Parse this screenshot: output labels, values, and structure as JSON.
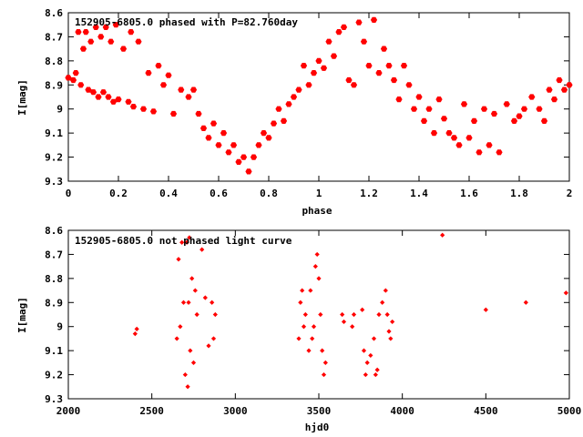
{
  "chart_data": [
    {
      "type": "scatter",
      "title": "152905-6805.0 phased with P=82.760day",
      "xlabel": "phase",
      "ylabel": "I[mag]",
      "xlim": [
        0,
        2
      ],
      "ylim": [
        9.3,
        8.6
      ],
      "y_inverted": true,
      "xticks": [
        0,
        0.2,
        0.4,
        0.6,
        0.8,
        1,
        1.2,
        1.4,
        1.6,
        1.8,
        2
      ],
      "xtick_labels": [
        "0",
        "0.2",
        "0.4",
        "0.6",
        "0.8",
        "1",
        "1.2",
        "1.4",
        "1.6",
        "1.8",
        "2"
      ],
      "yticks": [
        8.6,
        8.7,
        8.8,
        8.9,
        9,
        9.1,
        9.2,
        9.3
      ],
      "ytick_labels": [
        "8.6",
        "8.7",
        "8.8",
        "8.9",
        "9",
        "9.1",
        "9.2",
        "9.3"
      ],
      "marker": "filled-hexagon",
      "color": "#ff0000",
      "series": [
        {
          "x": [
            0.0,
            0.02,
            0.03,
            0.04,
            0.05,
            0.06,
            0.07,
            0.08,
            0.09,
            0.1,
            0.11,
            0.12,
            0.13,
            0.14,
            0.15,
            0.16,
            0.17,
            0.18,
            0.19,
            0.2,
            0.22,
            0.24,
            0.25,
            0.26,
            0.28,
            0.3,
            0.32,
            0.34,
            0.36,
            0.38,
            0.4,
            0.42,
            0.45,
            0.48,
            0.5,
            0.52,
            0.54,
            0.56,
            0.58,
            0.6,
            0.62,
            0.64,
            0.66,
            0.68,
            0.7,
            0.72,
            0.74,
            0.76,
            0.78,
            0.8,
            0.82,
            0.84,
            0.86,
            0.88,
            0.9,
            0.92,
            0.94,
            0.96,
            0.98,
            1.0,
            1.02,
            1.04,
            1.06,
            1.08,
            1.1,
            1.12,
            1.14,
            1.16,
            1.18,
            1.2,
            1.22,
            1.24,
            1.26,
            1.28,
            1.3,
            1.32,
            1.34,
            1.36,
            1.38,
            1.4,
            1.42,
            1.44,
            1.46,
            1.48,
            1.5,
            1.52,
            1.54,
            1.56,
            1.58,
            1.6,
            1.62,
            1.64,
            1.66,
            1.68,
            1.7,
            1.72,
            1.75,
            1.78,
            1.8,
            1.82,
            1.85,
            1.88,
            1.9,
            1.92,
            1.94,
            1.96,
            1.98,
            2.0
          ],
          "y": [
            8.87,
            8.88,
            8.85,
            8.68,
            8.9,
            8.75,
            8.68,
            8.92,
            8.72,
            8.93,
            8.66,
            8.95,
            8.7,
            8.93,
            8.66,
            8.95,
            8.72,
            8.97,
            8.65,
            8.96,
            8.75,
            8.97,
            8.68,
            8.99,
            8.72,
            9.0,
            8.85,
            9.01,
            8.82,
            8.9,
            8.86,
            9.02,
            8.92,
            8.95,
            8.92,
            9.02,
            9.08,
            9.12,
            9.06,
            9.15,
            9.1,
            9.18,
            9.15,
            9.22,
            9.2,
            9.26,
            9.2,
            9.15,
            9.1,
            9.12,
            9.06,
            9.0,
            9.05,
            8.98,
            8.95,
            8.92,
            8.82,
            8.9,
            8.85,
            8.8,
            8.83,
            8.72,
            8.78,
            8.68,
            8.66,
            8.88,
            8.9,
            8.64,
            8.72,
            8.82,
            8.63,
            8.85,
            8.75,
            8.82,
            8.88,
            8.96,
            8.82,
            8.9,
            9.0,
            8.95,
            9.05,
            9.0,
            9.1,
            8.96,
            9.04,
            9.1,
            9.12,
            9.15,
            8.98,
            9.12,
            9.05,
            9.18,
            9.0,
            9.15,
            9.02,
            9.18,
            8.98,
            9.05,
            9.03,
            9.0,
            8.95,
            9.0,
            9.05,
            8.92,
            8.96,
            8.88,
            8.92,
            8.9
          ]
        }
      ]
    },
    {
      "type": "scatter",
      "title": "152905-6805.0 not phased light curve",
      "xlabel": "hjd0",
      "ylabel": "I[mag]",
      "xlim": [
        2000,
        5000
      ],
      "ylim": [
        9.3,
        8.6
      ],
      "y_inverted": true,
      "xticks": [
        2000,
        2500,
        3000,
        3500,
        4000,
        4500,
        5000
      ],
      "xtick_labels": [
        "2000",
        "2500",
        "3000",
        "3500",
        "4000",
        "4500",
        "5000"
      ],
      "yticks": [
        8.6,
        8.7,
        8.8,
        8.9,
        9,
        9.1,
        9.2,
        9.3
      ],
      "ytick_labels": [
        "8.6",
        "8.7",
        "8.8",
        "8.9",
        "9",
        "9.1",
        "9.2",
        "9.3"
      ],
      "marker": "small-diamond",
      "color": "#ff0000",
      "series": [
        {
          "x": [
            2400,
            2410,
            2650,
            2660,
            2670,
            2680,
            2690,
            2700,
            2710,
            2715,
            2720,
            2725,
            2730,
            2740,
            2750,
            2760,
            2770,
            2800,
            2820,
            2840,
            2860,
            2870,
            2880,
            3380,
            3390,
            3400,
            3410,
            3420,
            3440,
            3450,
            3460,
            3470,
            3480,
            3490,
            3500,
            3510,
            3520,
            3530,
            3540,
            3640,
            3650,
            3700,
            3710,
            3760,
            3770,
            3780,
            3790,
            3810,
            3830,
            3840,
            3850,
            3860,
            3880,
            3900,
            3910,
            3920,
            3930,
            3940,
            4240,
            4500,
            4740,
            4980
          ],
          "y": [
            9.03,
            9.01,
            9.05,
            8.72,
            9.0,
            8.65,
            8.9,
            9.2,
            8.65,
            9.25,
            8.9,
            8.63,
            9.1,
            8.8,
            9.15,
            8.85,
            8.95,
            8.68,
            8.88,
            9.08,
            8.9,
            9.05,
            8.95,
            9.05,
            8.9,
            8.85,
            9.0,
            8.95,
            9.1,
            8.85,
            9.05,
            9.0,
            8.75,
            8.7,
            8.8,
            8.95,
            9.1,
            9.2,
            9.15,
            8.95,
            8.98,
            9.0,
            8.95,
            8.93,
            9.1,
            9.2,
            9.15,
            9.12,
            9.05,
            9.2,
            9.18,
            8.95,
            8.9,
            8.85,
            8.95,
            9.02,
            9.05,
            8.98,
            8.62,
            8.93,
            8.9,
            8.86
          ]
        }
      ]
    }
  ]
}
